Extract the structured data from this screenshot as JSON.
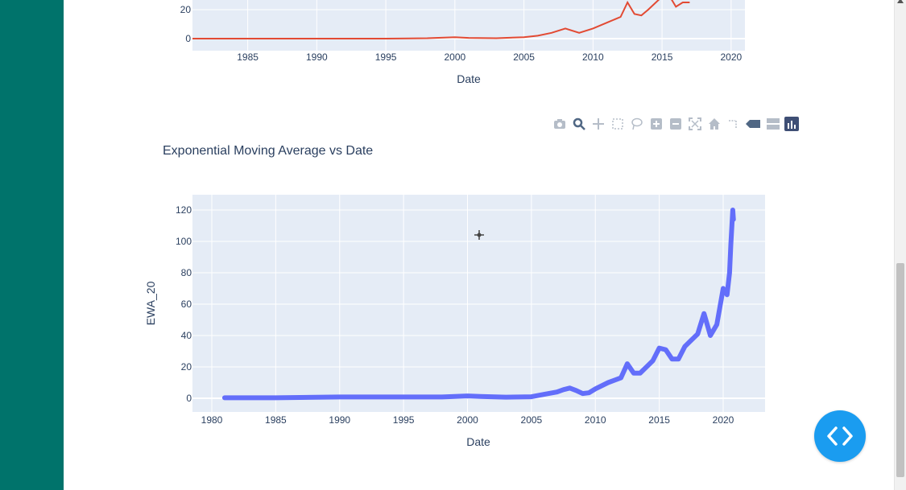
{
  "colors": {
    "sidebar": "#00736b",
    "plot_bg": "#e5ecf6",
    "top_series": "#e24a33",
    "ewa_series": "#636efa",
    "fab": "#1a9cf0"
  },
  "modebar": {
    "icons": [
      "camera-icon",
      "zoom-icon",
      "pan-icon",
      "box-select-icon",
      "lasso-select-icon",
      "zoom-in-icon",
      "zoom-out-icon",
      "autoscale-icon",
      "reset-axes-icon",
      "spike-lines-icon",
      "hover-closest-icon",
      "hover-compare-icon",
      "plotly-logo-icon"
    ]
  },
  "fab": {
    "icon": "code-icon"
  },
  "chart_data": [
    {
      "type": "line",
      "title": "",
      "xlabel": "Date",
      "ylabel": "",
      "x_ticks": [
        "1985",
        "1990",
        "1995",
        "2000",
        "2005",
        "2010",
        "2015",
        "2020"
      ],
      "y_ticks": [
        "0",
        "20"
      ],
      "xlim": [
        1981,
        2021
      ],
      "grid": true,
      "x": [
        1981,
        1985,
        1990,
        1995,
        1998,
        2000,
        2001,
        2003,
        2005,
        2006,
        2007,
        2008,
        2009,
        2010,
        2011,
        2012,
        2012.5,
        2013,
        2013.5,
        2014,
        2015,
        2015.5,
        2016,
        2016.5,
        2017
      ],
      "y": [
        0,
        0,
        0,
        0,
        0.3,
        1,
        0.5,
        0.3,
        1,
        2,
        4,
        7,
        4,
        7,
        11,
        15,
        25,
        17,
        16,
        20,
        29,
        30,
        22,
        25,
        25
      ]
    },
    {
      "type": "line",
      "title": "Exponential Moving Average vs Date",
      "xlabel": "Date",
      "ylabel": "EWA_20",
      "x_ticks": [
        "1980",
        "1985",
        "1990",
        "1995",
        "2000",
        "2005",
        "2010",
        "2015",
        "2020"
      ],
      "y_ticks": [
        "0",
        "20",
        "40",
        "60",
        "80",
        "100",
        "120"
      ],
      "xlim": [
        1979.5,
        2022.5
      ],
      "ylim": [
        -8,
        130
      ],
      "grid": true,
      "x": [
        1981,
        1985,
        1990,
        1995,
        1998,
        2000,
        2001,
        2003,
        2004,
        2005,
        2006,
        2007,
        2007.5,
        2008,
        2008.5,
        2009,
        2009.5,
        2010,
        2011,
        2012,
        2012.5,
        2013,
        2013.5,
        2014,
        2014.5,
        2015,
        2015.5,
        2016,
        2016.5,
        2017,
        2017.5,
        2018,
        2018.5,
        2019,
        2019.5,
        2020,
        2020.3,
        2020.5,
        2020.6,
        2020.75,
        2020.8
      ],
      "y": [
        0.3,
        0.3,
        0.8,
        0.8,
        0.8,
        1.5,
        1.2,
        0.7,
        0.8,
        1,
        2.5,
        4,
        5.5,
        6.5,
        5,
        3,
        3.5,
        6,
        10,
        13,
        22,
        16,
        16,
        20,
        24,
        32,
        31,
        25,
        25,
        33,
        37,
        41,
        54,
        40,
        47,
        70,
        66,
        80,
        98,
        120,
        114
      ]
    }
  ]
}
